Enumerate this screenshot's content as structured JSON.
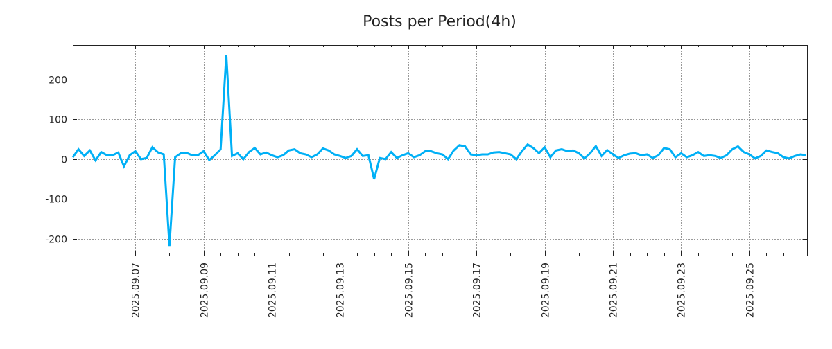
{
  "chart_data": {
    "type": "line",
    "title": "Posts per Period(4h)",
    "xlabel": "",
    "ylabel": "",
    "x_start": "2025-09-05 04:00",
    "interval_hours": 4,
    "ylim": [
      -242,
      287
    ],
    "yticks": [
      200,
      100,
      0,
      -100,
      -200
    ],
    "ytick_labels": [
      "200",
      "100",
      "0",
      "-100",
      "-200"
    ],
    "xtick_labels": [
      "2025.09.07",
      "2025.09.09",
      "2025.09.11",
      "2025.09.13",
      "2025.09.15",
      "2025.09.17",
      "2025.09.19",
      "2025.09.21",
      "2025.09.23",
      "2025.09.25"
    ],
    "grid": true,
    "legend": "none",
    "series": [
      {
        "name": "posts",
        "color": "#00b0f6",
        "values": [
          5,
          25,
          8,
          22,
          -3,
          18,
          10,
          10,
          17,
          -18,
          10,
          20,
          0,
          3,
          30,
          17,
          12,
          -218,
          5,
          15,
          16,
          10,
          10,
          20,
          -2,
          10,
          25,
          262,
          8,
          15,
          0,
          18,
          28,
          12,
          17,
          10,
          5,
          10,
          22,
          25,
          15,
          12,
          5,
          12,
          27,
          22,
          12,
          8,
          3,
          8,
          25,
          8,
          10,
          -50,
          3,
          0,
          18,
          3,
          10,
          15,
          5,
          10,
          20,
          20,
          15,
          12,
          0,
          22,
          35,
          32,
          12,
          10,
          12,
          12,
          17,
          18,
          15,
          12,
          0,
          20,
          37,
          28,
          15,
          30,
          5,
          22,
          25,
          20,
          22,
          15,
          2,
          15,
          33,
          8,
          23,
          12,
          3,
          10,
          14,
          15,
          10,
          12,
          3,
          10,
          28,
          25,
          5,
          15,
          5,
          10,
          18,
          8,
          10,
          8,
          3,
          10,
          25,
          32,
          18,
          12,
          2,
          8,
          22,
          18,
          15,
          5,
          2,
          8,
          12,
          10
        ]
      }
    ]
  }
}
